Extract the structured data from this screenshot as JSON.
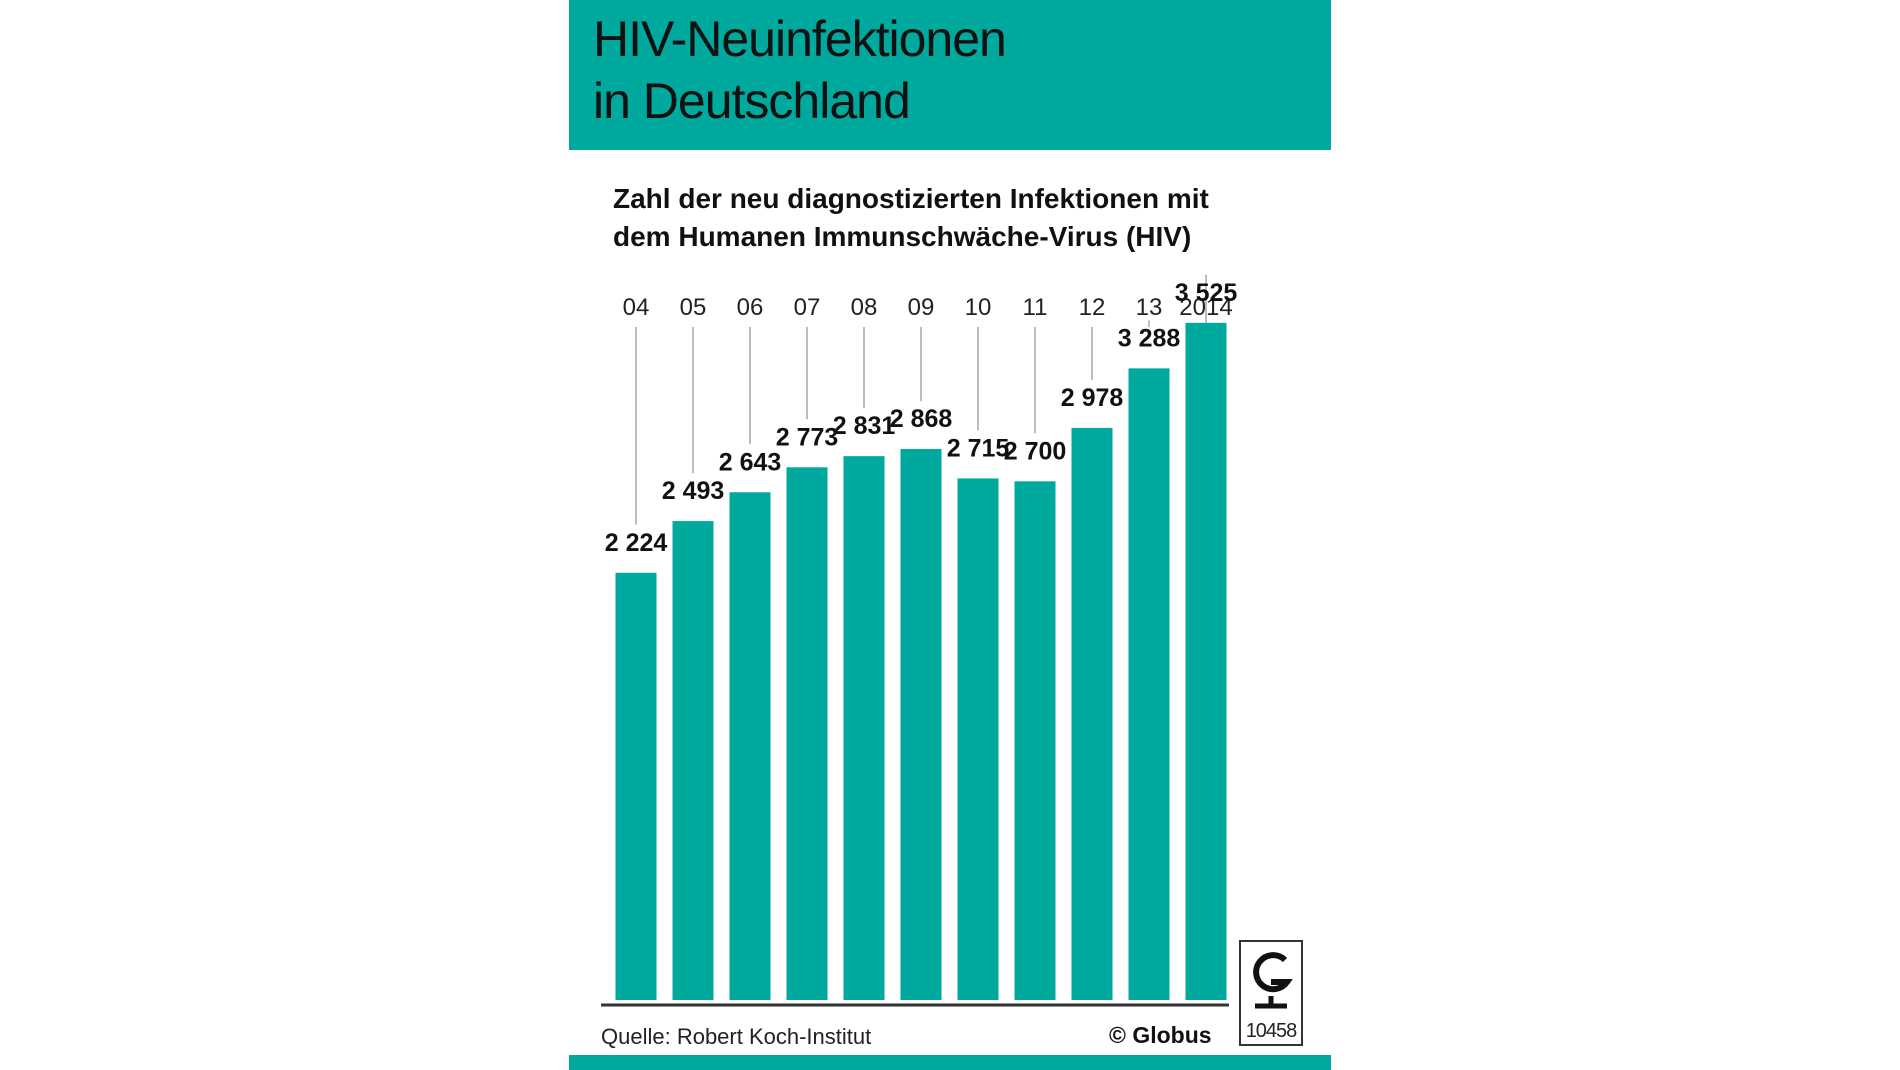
{
  "header": {
    "title_line1": "HIV-Neuinfektionen",
    "title_line2": "in Deutschland"
  },
  "chart_data": {
    "type": "bar",
    "title": "HIV-Neuinfektionen in Deutschland",
    "subtitle_line1": "Zahl der neu diagnostizierten Infektionen mit",
    "subtitle_line2": "dem Humanen Immunschwäche-Virus (HIV)",
    "categories": [
      "04",
      "05",
      "06",
      "07",
      "08",
      "09",
      "10",
      "11",
      "12",
      "13",
      "2014"
    ],
    "values": [
      2224,
      2493,
      2643,
      2773,
      2831,
      2868,
      2715,
      2700,
      2978,
      3288,
      3525
    ],
    "value_labels": [
      "2 224",
      "2 493",
      "2 643",
      "2 773",
      "2 831",
      "2 868",
      "2 715",
      "2 700",
      "2 978",
      "3 288",
      "3 525"
    ],
    "ylim": [
      0,
      3800
    ],
    "grid": false,
    "legend": "none",
    "bar_color": "#00a99d"
  },
  "footer": {
    "source": "Quelle: Robert Koch-Institut",
    "copyright": "© Globus",
    "logo_number": "10458"
  },
  "colors": {
    "accent": "#00a99d",
    "text": "#111111"
  }
}
